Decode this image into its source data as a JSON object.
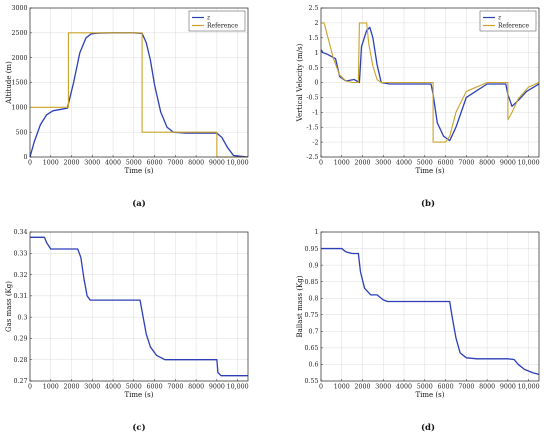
{
  "colors": {
    "series_primary": "#2b3fb8",
    "series_reference": "#c9a227",
    "reference_red": "#d24a4a"
  },
  "chart_data": [
    {
      "panel": "(a)",
      "type": "line",
      "xlabel": "Time (s)",
      "ylabel": "Altitude (m)",
      "xlim": [
        0,
        10500
      ],
      "ylim": [
        0,
        3000
      ],
      "xticks": [
        0,
        1000,
        2000,
        3000,
        4000,
        5000,
        6000,
        7000,
        8000,
        9000,
        10000
      ],
      "xtick_labels": [
        "0",
        "1000",
        "2000",
        "3000",
        "4000",
        "5000",
        "6000",
        "7000",
        "8000",
        "9000",
        "10,000"
      ],
      "yticks": [
        0,
        500,
        1000,
        1500,
        2000,
        2500,
        3000
      ],
      "legend": "top-right",
      "grid": true,
      "series": [
        {
          "name": "z",
          "color": "#2b3fb8",
          "x": [
            0,
            200,
            500,
            800,
            1100,
            1500,
            1800,
            2100,
            2400,
            2700,
            2950,
            3300,
            4000,
            5000,
            5400,
            5600,
            5800,
            6000,
            6300,
            6600,
            6900,
            7500,
            8500,
            9000,
            9250,
            9500,
            9800,
            10500
          ],
          "y": [
            0,
            300,
            650,
            850,
            930,
            960,
            985,
            1500,
            2100,
            2400,
            2480,
            2495,
            2500,
            2500,
            2490,
            2300,
            1950,
            1450,
            900,
            600,
            500,
            480,
            480,
            480,
            390,
            200,
            30,
            0
          ]
        },
        {
          "name": "Reference",
          "color": "#c9a227",
          "step": true,
          "x": [
            0,
            1850,
            1850,
            5400,
            5400,
            9000,
            9000,
            10500
          ],
          "y": [
            1000,
            1000,
            2500,
            2500,
            500,
            500,
            0,
            0
          ]
        }
      ]
    },
    {
      "panel": "(b)",
      "type": "line",
      "xlabel": "Time (s)",
      "ylabel": "Vertical Velocity (m/s)",
      "xlim": [
        0,
        10500
      ],
      "ylim": [
        -2.5,
        2.5
      ],
      "xticks": [
        0,
        1000,
        2000,
        3000,
        4000,
        5000,
        6000,
        7000,
        8000,
        9000,
        10000
      ],
      "xtick_labels": [
        "0",
        "1000",
        "2000",
        "3000",
        "4000",
        "5000",
        "6000",
        "7000",
        "8000",
        "9000",
        "10,000"
      ],
      "yticks": [
        -2.5,
        -2,
        -1.5,
        -1,
        -0.5,
        0,
        0.5,
        1,
        1.5,
        2,
        2.5
      ],
      "ytick_labels": [
        "-2.5",
        "-2",
        "-1.5",
        "-1",
        "-0.5",
        "0",
        "0.5",
        "1",
        "1.5",
        "2",
        "2.5"
      ],
      "legend": "top-right",
      "grid": true,
      "series": [
        {
          "name": "z",
          "color": "#2b3fb8",
          "x": [
            0,
            100,
            300,
            700,
            900,
            1200,
            1600,
            1850,
            1950,
            2200,
            2350,
            2500,
            2700,
            2900,
            3300,
            5300,
            5400,
            5600,
            5900,
            6200,
            6500,
            7000,
            8000,
            8900,
            9000,
            9200,
            9500,
            9900,
            10500
          ],
          "y": [
            1.1,
            1.0,
            0.95,
            0.8,
            0.2,
            0.05,
            0.1,
            0.0,
            1.2,
            1.75,
            1.85,
            1.5,
            0.6,
            0.0,
            -0.05,
            -0.05,
            -0.4,
            -1.35,
            -1.8,
            -1.95,
            -1.5,
            -0.5,
            -0.05,
            -0.05,
            -0.4,
            -0.8,
            -0.6,
            -0.3,
            -0.05
          ]
        },
        {
          "name": "Reference",
          "color": "#c9a227",
          "x": [
            0,
            150,
            300,
            600,
            900,
            1200,
            1500,
            1800,
            1850,
            2000,
            2200,
            2300,
            2500,
            2700,
            2900,
            3300,
            5300,
            5400,
            5400,
            5700,
            6000,
            6200,
            6500,
            7000,
            8000,
            9000,
            9000,
            9200,
            9500,
            10000,
            10500
          ],
          "y": [
            2.0,
            2.0,
            1.6,
            0.8,
            0.25,
            0.05,
            0.0,
            0.0,
            2.0,
            2.0,
            2.0,
            1.3,
            0.55,
            0.1,
            0.0,
            0.0,
            0.0,
            0.0,
            -2.0,
            -2.0,
            -2.0,
            -1.8,
            -1.0,
            -0.3,
            0.0,
            0.0,
            -1.25,
            -1.0,
            -0.55,
            -0.15,
            0.0
          ]
        }
      ]
    },
    {
      "panel": "(c)",
      "type": "line",
      "xlabel": "Time (s)",
      "ylabel": "Gas mass (Kg)",
      "xlim": [
        0,
        10500
      ],
      "ylim": [
        0.27,
        0.34
      ],
      "xticks": [
        0,
        1000,
        2000,
        3000,
        4000,
        5000,
        6000,
        7000,
        8000,
        9000,
        10000
      ],
      "xtick_labels": [
        "0",
        "1000",
        "2000",
        "3000",
        "4000",
        "5000",
        "6000",
        "7000",
        "8000",
        "9000",
        "10,000"
      ],
      "yticks": [
        0.27,
        0.28,
        0.29,
        0.3,
        0.31,
        0.32,
        0.33,
        0.34
      ],
      "ytick_labels": [
        "0.27",
        "0.28",
        "0.29",
        "0.3",
        "0.31",
        "0.32",
        "0.33",
        "0.34"
      ],
      "grid": true,
      "series": [
        {
          "color": "#2b3fb8",
          "x": [
            0,
            700,
            800,
            1000,
            1100,
            2300,
            2450,
            2600,
            2750,
            2900,
            3100,
            5300,
            5450,
            5600,
            5800,
            6100,
            6500,
            7000,
            8500,
            9000,
            9050,
            9200,
            10500
          ],
          "y": [
            0.3375,
            0.3375,
            0.335,
            0.332,
            0.332,
            0.332,
            0.328,
            0.318,
            0.31,
            0.308,
            0.308,
            0.308,
            0.3,
            0.292,
            0.286,
            0.282,
            0.28,
            0.28,
            0.28,
            0.28,
            0.274,
            0.2725,
            0.2725
          ]
        }
      ]
    },
    {
      "panel": "(d)",
      "type": "line",
      "xlabel": "Time (s)",
      "ylabel": "Ballast mass (Kg)",
      "xlim": [
        0,
        10500
      ],
      "ylim": [
        0.55,
        1.0
      ],
      "xticks": [
        0,
        1000,
        2000,
        3000,
        4000,
        5000,
        6000,
        7000,
        8000,
        9000,
        10000
      ],
      "xtick_labels": [
        "0",
        "1000",
        "2000",
        "3000",
        "4000",
        "5000",
        "6000",
        "7000",
        "8000",
        "9000",
        "10,000"
      ],
      "yticks": [
        0.55,
        0.6,
        0.65,
        0.7,
        0.75,
        0.8,
        0.85,
        0.9,
        0.95,
        1.0
      ],
      "ytick_labels": [
        "0.55",
        "0.6",
        "0.65",
        "0.7",
        "0.75",
        "0.8",
        "0.85",
        "0.9",
        "0.95",
        "1"
      ],
      "grid": true,
      "series": [
        {
          "color": "#2b3fb8",
          "x": [
            0,
            1000,
            1200,
            1500,
            1800,
            1900,
            2100,
            2400,
            2700,
            3000,
            3200,
            6200,
            6300,
            6500,
            6700,
            7000,
            7500,
            9000,
            9300,
            9500,
            9800,
            10200,
            10500
          ],
          "y": [
            0.95,
            0.95,
            0.94,
            0.935,
            0.935,
            0.88,
            0.83,
            0.81,
            0.81,
            0.795,
            0.79,
            0.79,
            0.75,
            0.68,
            0.635,
            0.62,
            0.617,
            0.617,
            0.615,
            0.6,
            0.585,
            0.575,
            0.57
          ]
        }
      ]
    }
  ]
}
